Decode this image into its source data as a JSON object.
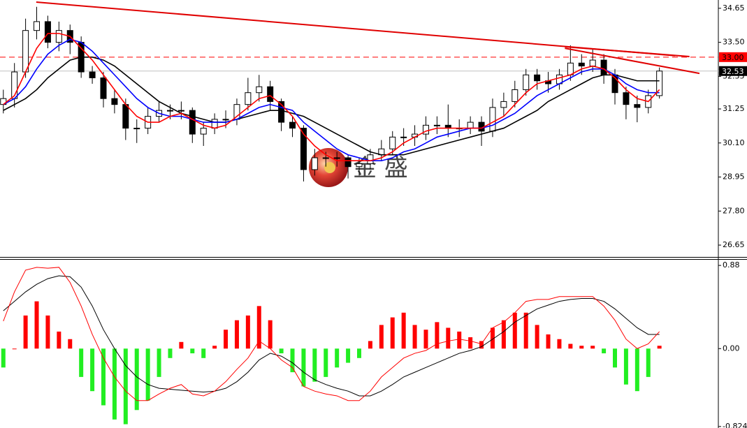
{
  "chart_data": [
    {
      "type": "candlestick",
      "xlim": [
        -0.3,
        64.3
      ],
      "ylim": [
        26.25,
        34.93
      ],
      "yticks": [
        {
          "value": 34.65,
          "label": "34.65"
        },
        {
          "value": 33.5,
          "label": "33.50"
        },
        {
          "value": 32.35,
          "label": "32.35"
        },
        {
          "value": 31.25,
          "label": "31.25"
        },
        {
          "value": 30.1,
          "label": "30.10"
        },
        {
          "value": 28.95,
          "label": "28.95"
        },
        {
          "value": 27.8,
          "label": "27.80"
        },
        {
          "value": 26.65,
          "label": "26.65"
        }
      ],
      "up_color": "#ffffff",
      "down_color": "#000000",
      "open": [
        31.4,
        31.6,
        32.5,
        33.9,
        34.2,
        33.5,
        33.9,
        33.5,
        32.5,
        32.3,
        31.6,
        31.4,
        30.6,
        30.6,
        31.0,
        31.2,
        31.2,
        31.2,
        30.4,
        30.6,
        30.9,
        30.9,
        31.4,
        31.8,
        32.0,
        31.5,
        30.8,
        30.6,
        29.2,
        29.6,
        29.6,
        29.6,
        29.3,
        29.4,
        29.7,
        29.9,
        30.3,
        30.3,
        30.4,
        30.7,
        30.7,
        30.6,
        30.6,
        30.8,
        30.5,
        31.3,
        31.5,
        31.9,
        32.4,
        32.2,
        32.1,
        32.4,
        32.8,
        32.7,
        32.9,
        32.4,
        31.8,
        31.4,
        31.3,
        31.7
      ],
      "high": [
        31.9,
        32.8,
        34.3,
        34.7,
        34.4,
        34.2,
        34.1,
        33.7,
        32.7,
        32.5,
        31.9,
        31.6,
        30.9,
        31.3,
        31.5,
        31.4,
        31.5,
        31.3,
        30.8,
        31.1,
        31.2,
        31.6,
        32.3,
        32.4,
        32.2,
        31.6,
        31.0,
        30.7,
        29.9,
        29.8,
        29.8,
        29.7,
        29.6,
        29.9,
        30.2,
        30.5,
        30.6,
        30.7,
        31.0,
        31.0,
        31.4,
        30.9,
        31.0,
        31.0,
        31.6,
        31.8,
        32.2,
        32.6,
        32.6,
        32.5,
        32.6,
        33.4,
        33.1,
        33.3,
        33.1,
        32.6,
        32.0,
        31.7,
        31.9,
        32.65
      ],
      "low": [
        31.1,
        31.3,
        32.3,
        33.6,
        33.3,
        33.2,
        33.1,
        32.3,
        32.1,
        31.3,
        31.1,
        30.2,
        30.1,
        30.4,
        30.8,
        30.9,
        30.9,
        30.1,
        30.0,
        30.4,
        30.6,
        30.7,
        31.2,
        31.5,
        31.2,
        30.5,
        30.3,
        28.8,
        29.0,
        29.3,
        29.3,
        28.9,
        29.0,
        29.2,
        29.5,
        29.7,
        30.0,
        30.0,
        30.2,
        30.4,
        30.3,
        30.3,
        30.4,
        30.0,
        30.3,
        31.0,
        31.3,
        31.7,
        31.9,
        31.8,
        31.9,
        32.2,
        32.4,
        32.5,
        32.1,
        31.4,
        30.9,
        30.8,
        31.1,
        31.6
      ],
      "close": [
        31.6,
        32.5,
        33.9,
        34.2,
        33.5,
        33.9,
        33.5,
        32.5,
        32.3,
        31.6,
        31.4,
        30.6,
        30.6,
        31.0,
        31.2,
        31.2,
        31.2,
        30.4,
        30.6,
        30.9,
        30.9,
        31.4,
        31.8,
        32.0,
        31.5,
        30.8,
        30.6,
        29.2,
        29.6,
        29.6,
        29.6,
        29.3,
        29.4,
        29.7,
        29.9,
        30.3,
        30.3,
        30.4,
        30.7,
        30.7,
        30.6,
        30.6,
        30.8,
        30.5,
        31.3,
        31.5,
        31.9,
        32.4,
        32.2,
        32.1,
        32.4,
        32.8,
        32.7,
        32.9,
        32.4,
        31.8,
        31.4,
        31.3,
        31.7,
        32.53
      ],
      "series": [
        {
          "color": "#000000",
          "values": [
            31.2,
            31.4,
            31.6,
            31.9,
            32.3,
            32.6,
            32.9,
            33.0,
            33.0,
            32.9,
            32.7,
            32.4,
            32.1,
            31.8,
            31.5,
            31.3,
            31.1,
            31.0,
            30.9,
            30.8,
            30.8,
            30.9,
            31.0,
            31.1,
            31.2,
            31.2,
            31.1,
            31.0,
            30.8,
            30.6,
            30.4,
            30.2,
            30.0,
            29.8,
            29.7,
            29.7,
            29.7,
            29.8,
            29.9,
            30.0,
            30.1,
            30.2,
            30.3,
            30.4,
            30.5,
            30.6,
            30.8,
            31.0,
            31.2,
            31.5,
            31.7,
            31.9,
            32.1,
            32.3,
            32.4,
            32.4,
            32.3,
            32.2,
            32.2,
            32.2
          ]
        },
        {
          "color": "#0000ff",
          "values": [
            31.4,
            31.6,
            32.0,
            32.6,
            33.1,
            33.4,
            33.6,
            33.5,
            33.2,
            32.8,
            32.4,
            32.0,
            31.6,
            31.3,
            31.1,
            31.0,
            31.0,
            30.9,
            30.8,
            30.8,
            30.8,
            30.9,
            31.1,
            31.3,
            31.4,
            31.3,
            31.2,
            30.8,
            30.5,
            30.2,
            29.9,
            29.7,
            29.6,
            29.5,
            29.5,
            29.6,
            29.8,
            29.9,
            30.1,
            30.3,
            30.4,
            30.5,
            30.6,
            30.6,
            30.7,
            30.9,
            31.1,
            31.4,
            31.7,
            31.9,
            32.1,
            32.3,
            32.5,
            32.6,
            32.6,
            32.4,
            32.1,
            31.9,
            31.8,
            31.8
          ]
        },
        {
          "color": "#ff0000",
          "values": [
            31.4,
            31.7,
            32.5,
            33.3,
            33.8,
            33.8,
            33.7,
            33.3,
            32.9,
            32.4,
            31.9,
            31.4,
            31.0,
            30.8,
            30.8,
            31.0,
            31.1,
            30.9,
            30.7,
            30.6,
            30.7,
            31.0,
            31.3,
            31.6,
            31.7,
            31.4,
            31.0,
            30.4,
            30.0,
            29.7,
            29.5,
            29.5,
            29.5,
            29.5,
            29.6,
            29.8,
            30.1,
            30.3,
            30.5,
            30.6,
            30.6,
            30.6,
            30.6,
            30.6,
            30.8,
            31.0,
            31.4,
            31.8,
            32.1,
            32.2,
            32.3,
            32.4,
            32.6,
            32.7,
            32.6,
            32.3,
            31.9,
            31.6,
            31.5,
            31.9
          ]
        }
      ],
      "trendlines": [
        {
          "color": "#e00000",
          "x": [
            2.96,
            60.4
          ],
          "y": [
            34.86,
            33.05
          ]
        },
        {
          "color": "#e00000",
          "x": [
            50.5,
            61.7
          ],
          "y": [
            33.35,
            33.02
          ]
        },
        {
          "color": "#e00000",
          "x": [
            50.5,
            62.6
          ],
          "y": [
            33.3,
            32.45
          ]
        }
      ],
      "hline": {
        "value": 33.0,
        "label": "33.00",
        "color": "#ff0000"
      },
      "last_price": {
        "value": 32.53,
        "label": "32.53",
        "color": "#c0c0c0"
      },
      "watermark": "金 盛"
    },
    {
      "type": "macd",
      "xlim": [
        -0.3,
        64.3
      ],
      "ylim": [
        -0.84,
        0.94
      ],
      "yticks": [
        {
          "value": 0.88,
          "label": "0.88"
        },
        {
          "value": 0,
          "label": "0.00"
        },
        {
          "value": -0.824,
          "label": "-0.824"
        }
      ],
      "histogram": {
        "up_color": "#ff0000",
        "down_color": "#22ee22",
        "values": [
          -0.2,
          0.0,
          0.35,
          0.5,
          0.35,
          0.18,
          0.1,
          -0.3,
          -0.45,
          -0.6,
          -0.75,
          -0.8,
          -0.65,
          -0.55,
          -0.3,
          -0.1,
          0.07,
          -0.05,
          -0.1,
          0.03,
          0.2,
          0.3,
          0.35,
          0.45,
          0.3,
          -0.05,
          -0.25,
          -0.4,
          -0.35,
          -0.3,
          -0.2,
          -0.15,
          -0.1,
          0.08,
          0.25,
          0.33,
          0.38,
          0.25,
          0.2,
          0.28,
          0.22,
          0.18,
          0.12,
          0.08,
          0.22,
          0.3,
          0.38,
          0.38,
          0.25,
          0.15,
          0.1,
          0.05,
          0.03,
          0.03,
          -0.05,
          -0.2,
          -0.38,
          -0.45,
          -0.3,
          0.03
        ]
      },
      "series": [
        {
          "color": "#000000",
          "values": [
            0.4,
            0.5,
            0.6,
            0.68,
            0.74,
            0.77,
            0.76,
            0.65,
            0.45,
            0.2,
            0.0,
            -0.18,
            -0.3,
            -0.38,
            -0.42,
            -0.43,
            -0.44,
            -0.45,
            -0.46,
            -0.45,
            -0.42,
            -0.35,
            -0.25,
            -0.12,
            -0.05,
            -0.08,
            -0.15,
            -0.25,
            -0.33,
            -0.38,
            -0.42,
            -0.45,
            -0.5,
            -0.5,
            -0.45,
            -0.38,
            -0.3,
            -0.25,
            -0.2,
            -0.15,
            -0.1,
            -0.05,
            -0.02,
            0.02,
            0.1,
            0.18,
            0.28,
            0.35,
            0.42,
            0.46,
            0.5,
            0.52,
            0.53,
            0.53,
            0.5,
            0.42,
            0.32,
            0.22,
            0.15,
            0.15
          ]
        },
        {
          "color": "#ff0000",
          "values": [
            0.29,
            0.6,
            0.83,
            0.86,
            0.85,
            0.86,
            0.7,
            0.45,
            0.15,
            -0.1,
            -0.3,
            -0.45,
            -0.55,
            -0.55,
            -0.48,
            -0.42,
            -0.38,
            -0.48,
            -0.5,
            -0.45,
            -0.35,
            -0.22,
            -0.1,
            0.08,
            0.0,
            -0.12,
            -0.2,
            -0.4,
            -0.45,
            -0.48,
            -0.5,
            -0.55,
            -0.55,
            -0.45,
            -0.3,
            -0.2,
            -0.1,
            -0.05,
            -0.02,
            0.05,
            0.08,
            0.1,
            0.08,
            0.05,
            0.22,
            0.28,
            0.38,
            0.5,
            0.52,
            0.52,
            0.55,
            0.55,
            0.55,
            0.55,
            0.45,
            0.3,
            0.1,
            0.0,
            0.05,
            0.18
          ]
        }
      ]
    }
  ]
}
